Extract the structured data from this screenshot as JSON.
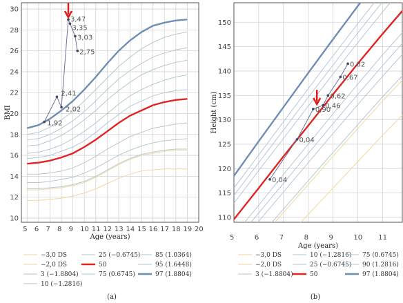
{
  "chart_data": [
    {
      "type": "line",
      "xlabel": "Age (years)",
      "ylabel": "BMI",
      "xlim": [
        4.5,
        20
      ],
      "ylim": [
        9.6,
        30.6
      ],
      "xticks": [
        "5",
        "6",
        "7",
        "8",
        "9",
        "10",
        "11",
        "12",
        "13",
        "14",
        "15",
        "16",
        "17",
        "18",
        "19",
        "20"
      ],
      "yticks": [
        "10",
        "12",
        "14",
        "16",
        "18",
        "20",
        "22",
        "24",
        "26",
        "28",
        "30"
      ],
      "grid": true,
      "caption": "(a)",
      "percentile_curves": [
        {
          "name": "−3,0 DS",
          "color": "#f1d8a0",
          "width": 1,
          "x": [
            5,
            6,
            7,
            8,
            9,
            10,
            11,
            12,
            13,
            14,
            15,
            16,
            17,
            18,
            19
          ],
          "y": [
            11.7,
            11.7,
            11.8,
            11.9,
            12.1,
            12.4,
            12.8,
            13.3,
            13.8,
            14.2,
            14.5,
            14.6,
            14.7,
            14.7,
            14.7
          ]
        },
        {
          "name": "−2,0 DS",
          "color": "#f1d8a0",
          "width": 1,
          "x": [
            5,
            6,
            7,
            8,
            9,
            10,
            11,
            12,
            13,
            14,
            15,
            16,
            17,
            18,
            19
          ],
          "y": [
            12.7,
            12.7,
            12.8,
            12.9,
            13.1,
            13.4,
            13.9,
            14.5,
            15.1,
            15.6,
            16.0,
            16.2,
            16.4,
            16.5,
            16.5
          ]
        },
        {
          "name": "3 (−1.8804)",
          "color": "#b5c8d2",
          "width": 1,
          "x": [
            5,
            6,
            7,
            8,
            9,
            10,
            11,
            12,
            13,
            14,
            15,
            16,
            17,
            18,
            19
          ],
          "y": [
            12.8,
            12.8,
            12.9,
            13.0,
            13.2,
            13.5,
            14.0,
            14.6,
            15.2,
            15.7,
            16.1,
            16.3,
            16.5,
            16.6,
            16.6
          ]
        },
        {
          "name": "10 (−1.2816)",
          "color": "#b5c8d2",
          "width": 1,
          "x": [
            5,
            6,
            7,
            8,
            9,
            10,
            11,
            12,
            13,
            14,
            15,
            16,
            17,
            18,
            19
          ],
          "y": [
            13.4,
            13.4,
            13.5,
            13.7,
            13.9,
            14.3,
            14.8,
            15.4,
            16.0,
            16.5,
            16.9,
            17.2,
            17.4,
            17.5,
            17.6
          ]
        },
        {
          "name": "25 (−0.6745)",
          "color": "#b5c8d2",
          "width": 1,
          "x": [
            5,
            6,
            7,
            8,
            9,
            10,
            11,
            12,
            13,
            14,
            15,
            16,
            17,
            18,
            19
          ],
          "y": [
            14.2,
            14.2,
            14.3,
            14.5,
            14.8,
            15.3,
            15.9,
            16.6,
            17.2,
            17.8,
            18.2,
            18.6,
            18.8,
            19.0,
            19.1
          ]
        },
        {
          "name": "50",
          "color": "#e02424",
          "width": 2.4,
          "x": [
            5,
            6,
            7,
            8,
            9,
            10,
            11,
            12,
            13,
            14,
            15,
            16,
            17,
            18,
            19
          ],
          "y": [
            15.2,
            15.3,
            15.5,
            15.8,
            16.2,
            16.8,
            17.5,
            18.3,
            19.1,
            19.8,
            20.3,
            20.8,
            21.1,
            21.3,
            21.4
          ]
        },
        {
          "name": "75 (0.6745)",
          "color": "#b5c8d2",
          "width": 1,
          "x": [
            5,
            6,
            7,
            8,
            9,
            10,
            11,
            12,
            13,
            14,
            15,
            16,
            17,
            18,
            19
          ],
          "y": [
            16.2,
            16.3,
            16.6,
            17.0,
            17.6,
            18.3,
            19.1,
            20.0,
            20.9,
            21.7,
            22.3,
            22.8,
            23.2,
            23.5,
            23.7
          ]
        },
        {
          "name": "85 (1.0364)",
          "color": "#b5c8d2",
          "width": 1,
          "x": [
            5,
            6,
            7,
            8,
            9,
            10,
            11,
            12,
            13,
            14,
            15,
            16,
            17,
            18,
            19
          ],
          "y": [
            16.9,
            17.0,
            17.4,
            17.9,
            18.6,
            19.4,
            20.3,
            21.3,
            22.2,
            23.0,
            23.7,
            24.2,
            24.6,
            24.9,
            25.1
          ]
        },
        {
          "name": "95 (1.6448)",
          "color": "#b5c8d2",
          "width": 1,
          "x": [
            5,
            6,
            7,
            8,
            9,
            10,
            11,
            12,
            13,
            14,
            15,
            16,
            17,
            18,
            19
          ],
          "y": [
            18.0,
            18.2,
            18.7,
            19.4,
            20.2,
            21.2,
            22.3,
            23.4,
            24.5,
            25.4,
            26.2,
            26.8,
            27.3,
            27.6,
            27.8
          ]
        },
        {
          "name": "97 (1.8804)",
          "color": "#6e8fb3",
          "width": 2.4,
          "x": [
            5,
            6,
            7,
            8,
            9,
            10,
            11,
            12,
            13,
            14,
            15,
            16,
            17,
            18,
            19
          ],
          "y": [
            18.6,
            18.9,
            19.5,
            20.3,
            21.2,
            22.3,
            23.5,
            24.8,
            26.0,
            27.0,
            27.8,
            28.4,
            28.7,
            28.9,
            29.0
          ]
        }
      ],
      "extra_curves": [
        {
          "color": "#b5c8d2",
          "width": 1,
          "x": [
            5,
            6,
            7,
            8,
            9,
            10,
            11,
            12,
            13,
            14,
            15,
            16,
            17,
            18,
            19
          ],
          "y": [
            17.5,
            17.6,
            18.0,
            18.6,
            19.3,
            20.2,
            21.2,
            22.3,
            23.3,
            24.1,
            24.8,
            25.4,
            25.8,
            26.1,
            26.3
          ]
        },
        {
          "color": "#b5c8d2",
          "width": 1,
          "x": [
            5,
            6,
            7,
            8,
            9,
            10,
            11,
            12,
            13,
            14,
            15,
            16,
            17,
            18,
            19
          ],
          "y": [
            15.7,
            15.8,
            16.0,
            16.4,
            16.8,
            17.4,
            18.2,
            19.1,
            19.9,
            20.7,
            21.2,
            21.7,
            22.0,
            22.2,
            22.3
          ]
        }
      ],
      "patient": {
        "color": "#6f7390",
        "x": [
          6.5,
          7.6,
          8.0,
          8.6,
          8.75,
          9.2,
          9.4
        ],
        "y": [
          19.2,
          21.6,
          20.6,
          29.0,
          28.6,
          27.4,
          26.0
        ],
        "labels": [
          "1,92",
          "2,41",
          "2,02",
          "3,47",
          "3,35",
          "3,03",
          "2,75"
        ]
      },
      "arrow": {
        "x": 8.6,
        "color": "#e01b1b"
      },
      "legend": {
        "placement": "bottom",
        "entries": [
          {
            "label": "−3,0 DS",
            "color": "#f1d8a0",
            "width": 1
          },
          {
            "label": "25 (−0.6745)",
            "color": "#b5c8d2",
            "width": 1
          },
          {
            "label": "85 (1.0364)",
            "color": "#b5c8d2",
            "width": 1
          },
          {
            "label": "−2,0 DS",
            "color": "#f1d8a0",
            "width": 1
          },
          {
            "label": "50",
            "color": "#e02424",
            "width": 2.4
          },
          {
            "label": "95 (1.6448)",
            "color": "#b5c8d2",
            "width": 1
          },
          {
            "label": "3 (−1.8804)",
            "color": "#b5c8d2",
            "width": 1
          },
          {
            "label": "75 (0.6745)",
            "color": "#b5c8d2",
            "width": 1
          },
          {
            "label": "97 (1.8804)",
            "color": "#6e8fb3",
            "width": 2.4
          },
          {
            "label": "10 (−1.2816)",
            "color": "#b5c8d2",
            "width": 1
          }
        ]
      }
    },
    {
      "type": "line",
      "xlabel": "Age (years)",
      "ylabel": "Height (cm)",
      "xlim": [
        5,
        11.8
      ],
      "ylim": [
        109,
        154
      ],
      "xticks": [
        "5",
        "6",
        "7",
        "8",
        "9",
        "10",
        "11"
      ],
      "yticks": [
        "110",
        "115",
        "120",
        "125",
        "130",
        "135",
        "140",
        "145",
        "150"
      ],
      "grid": true,
      "caption": "(b)",
      "percentile_curves": [
        {
          "name": "−3,0 DS",
          "color": "#f1d8a0",
          "width": 1,
          "x": [
            5,
            6,
            7,
            8,
            9,
            10,
            11,
            12
          ],
          "y": [
            94.5,
            99.8,
            105.2,
            110.6,
            116.0,
            121.4,
            126.8,
            132.0
          ]
        },
        {
          "name": "−2,0 DS",
          "color": "#f1d8a0",
          "width": 1,
          "x": [
            5,
            6,
            7,
            8,
            9,
            10,
            11,
            12
          ],
          "y": [
            99.3,
            105.2,
            111.0,
            116.7,
            122.5,
            128.2,
            133.8,
            139.2
          ]
        },
        {
          "name": "3 (−1.8804)",
          "color": "#b5c8d2",
          "width": 1,
          "x": [
            5,
            6,
            7,
            8,
            9,
            10,
            11,
            12
          ],
          "y": [
            100.0,
            105.9,
            111.7,
            117.5,
            123.3,
            129.0,
            134.7,
            140.1
          ]
        },
        {
          "name": "10 (−1.2816)",
          "color": "#b5c8d2",
          "width": 1,
          "x": [
            5,
            6,
            7,
            8,
            9,
            10,
            11,
            12
          ],
          "y": [
            103.2,
            109.2,
            115.2,
            121.2,
            127.2,
            133.1,
            138.9,
            144.5
          ]
        },
        {
          "name": "25 (−0.6745)",
          "color": "#b5c8d2",
          "width": 1,
          "x": [
            5,
            6,
            7,
            8,
            9,
            10,
            11,
            12
          ],
          "y": [
            106.3,
            112.5,
            118.8,
            125.0,
            131.2,
            137.3,
            143.3,
            149.0
          ]
        },
        {
          "name": "50",
          "color": "#e02424",
          "width": 2.4,
          "x": [
            5,
            6,
            7,
            8,
            9,
            10,
            11,
            12
          ],
          "y": [
            109.6,
            116.0,
            122.5,
            128.8,
            135.2,
            141.5,
            147.6,
            153.5
          ]
        },
        {
          "name": "75 (0.6745)",
          "color": "#b5c8d2",
          "width": 1,
          "x": [
            5,
            6,
            7,
            8,
            9,
            10,
            11,
            12
          ],
          "y": [
            112.9,
            119.6,
            126.2,
            132.8,
            139.4,
            145.8,
            152.1,
            158.2
          ]
        },
        {
          "name": "90 (1.2816)",
          "color": "#b5c8d2",
          "width": 1,
          "x": [
            5,
            6,
            7,
            8,
            9,
            10,
            11,
            12
          ],
          "y": [
            116.0,
            122.8,
            129.6,
            136.4,
            143.1,
            149.7,
            156.2,
            162.5
          ]
        },
        {
          "name": "97 (1.8804)",
          "color": "#6e8fb3",
          "width": 2.4,
          "x": [
            5,
            6,
            7,
            8,
            9,
            10,
            11,
            12
          ],
          "y": [
            118.5,
            125.6,
            132.6,
            139.6,
            146.5,
            153.3,
            160.0,
            166.5
          ]
        }
      ],
      "extra_curves": [
        {
          "color": "#b5c8d2",
          "width": 1,
          "x": [
            5,
            6,
            7,
            8,
            9,
            10,
            11,
            12
          ],
          "y": [
            114.5,
            121.2,
            127.9,
            134.6,
            141.2,
            147.8,
            154.2,
            160.4
          ]
        },
        {
          "color": "#b5c8d2",
          "width": 1,
          "x": [
            5,
            6,
            7,
            8,
            9,
            10,
            11,
            12
          ],
          "y": [
            104.8,
            110.9,
            117.0,
            123.1,
            129.2,
            135.2,
            141.1,
            146.8
          ]
        }
      ],
      "patient": {
        "color": "#6f7390",
        "x": [
          6.45,
          7.55,
          8.2,
          8.6,
          8.8,
          9.3,
          9.6
        ],
        "y": [
          117.8,
          126.0,
          132.2,
          133.0,
          135.0,
          138.8,
          141.5
        ],
        "labels": [
          "0,04",
          "0,04",
          "0,90",
          "0,46",
          "0,62",
          "0,67",
          "0,82"
        ]
      },
      "arrow": {
        "x": 8.35,
        "color": "#e01b1b"
      },
      "legend": {
        "placement": "bottom",
        "entries": [
          {
            "label": "−3,0 DS",
            "color": "#f1d8a0",
            "width": 1
          },
          {
            "label": "10 (−1.2816)",
            "color": "#b5c8d2",
            "width": 1
          },
          {
            "label": "75 (0.6745)",
            "color": "#b5c8d2",
            "width": 1
          },
          {
            "label": "−2,0 DS",
            "color": "#f1d8a0",
            "width": 1
          },
          {
            "label": "25 (−0.6745)",
            "color": "#b5c8d2",
            "width": 1
          },
          {
            "label": "90 (1.2816)",
            "color": "#b5c8d2",
            "width": 1
          },
          {
            "label": "3 (−1.8804)",
            "color": "#b5c8d2",
            "width": 1
          },
          {
            "label": "50",
            "color": "#e02424",
            "width": 2.4
          },
          {
            "label": "97 (1.8804)",
            "color": "#6e8fb3",
            "width": 2.4
          }
        ]
      }
    }
  ]
}
